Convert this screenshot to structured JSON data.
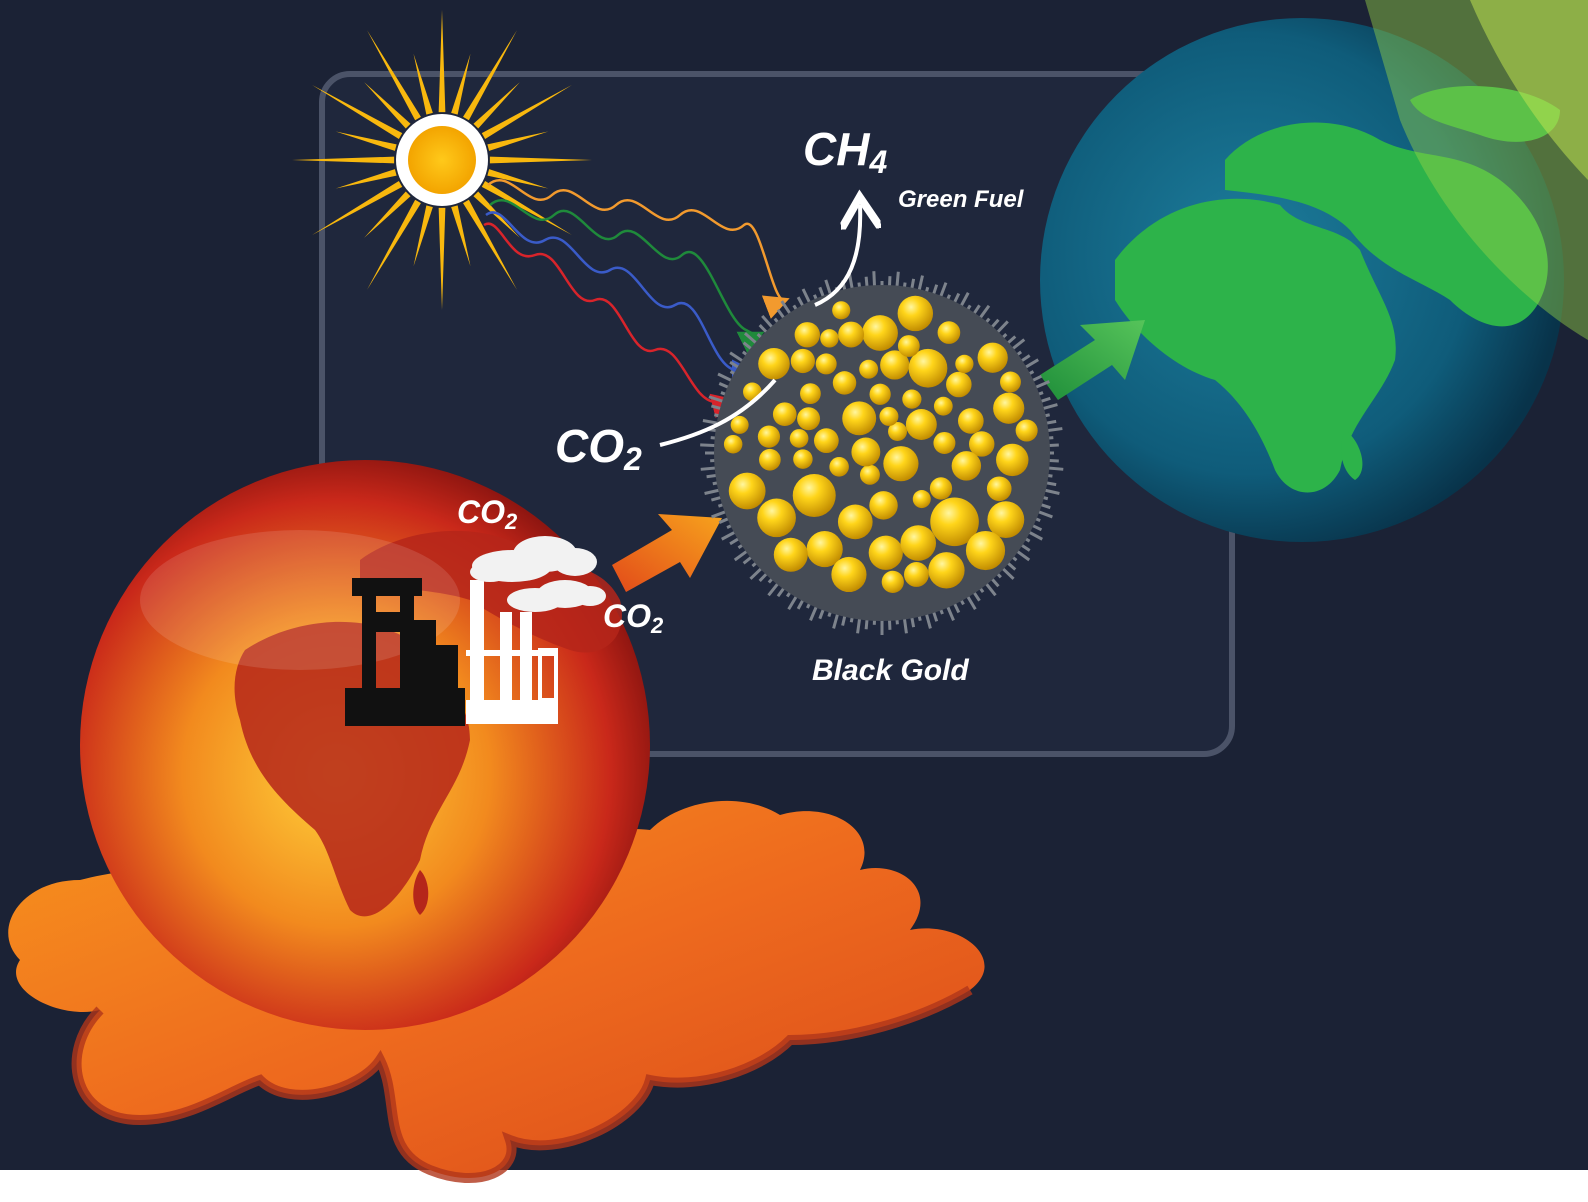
{
  "labels": {
    "ch4_main": "CH",
    "ch4_sub": "4",
    "green_fuel": "Green Fuel",
    "co2_main_big": "CO",
    "co2_sub_big": "2",
    "co2_main_top": "CO",
    "co2_sub_top": "2",
    "co2_main_right": "CO",
    "co2_sub_right": "2",
    "black_gold": "Black Gold"
  },
  "colors": {
    "background": "#1b2235",
    "sun": "#f8b80e",
    "nanoparticle": "#f2c30c",
    "earth_ocean": "#0f5c7a",
    "earth_land": "#2db34a",
    "hot_earth": "#d9401c",
    "lava": "#f07a1c",
    "ray_orange": "#f29a2e",
    "ray_green": "#1f8a3b",
    "ray_blue": "#3a5bc8",
    "ray_red": "#d8242b"
  }
}
